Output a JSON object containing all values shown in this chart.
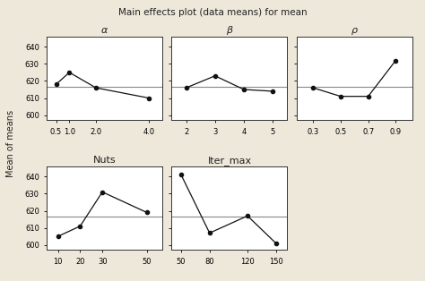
{
  "title": "Main effects plot (data means) for mean",
  "ylabel": "Mean of means",
  "background_color": "#ede8da",
  "panel_bg": "#ffffff",
  "line_color": "#111111",
  "ref_line_color": "#888888",
  "ref_line_value": 616.5,
  "subplots": [
    {
      "label": "α",
      "x": [
        0.5,
        1.0,
        2.0,
        4.0
      ],
      "y": [
        618,
        625,
        616,
        610
      ],
      "xlim": [
        0.15,
        4.5
      ],
      "xticks": [
        0.5,
        1.0,
        2.0,
        4.0
      ],
      "xticklabels": [
        "0.5",
        "1.0",
        "2.0",
        "4.0"
      ]
    },
    {
      "label": "β",
      "x": [
        2,
        3,
        4,
        5
      ],
      "y": [
        616,
        623,
        615,
        614
      ],
      "xlim": [
        1.5,
        5.5
      ],
      "xticks": [
        2,
        3,
        4,
        5
      ],
      "xticklabels": [
        "2",
        "3",
        "4",
        "5"
      ]
    },
    {
      "label": "ρ",
      "x": [
        0.3,
        0.5,
        0.7,
        0.9
      ],
      "y": [
        616,
        611,
        611,
        632
      ],
      "xlim": [
        0.18,
        1.02
      ],
      "xticks": [
        0.3,
        0.5,
        0.7,
        0.9
      ],
      "xticklabels": [
        "0.3",
        "0.5",
        "0.7",
        "0.9"
      ]
    },
    {
      "label": "Nuts",
      "x": [
        10,
        20,
        30,
        50
      ],
      "y": [
        605,
        611,
        631,
        619
      ],
      "xlim": [
        5,
        57
      ],
      "xticks": [
        10,
        20,
        30,
        50
      ],
      "xticklabels": [
        "10",
        "20",
        "30",
        "50"
      ]
    },
    {
      "label": "Iter_max",
      "x": [
        50,
        80,
        120,
        150
      ],
      "y": [
        641,
        607,
        617,
        601
      ],
      "xlim": [
        40,
        162
      ],
      "xticks": [
        50,
        80,
        120,
        150
      ],
      "xticklabels": [
        "50",
        "80",
        "120",
        "150"
      ]
    }
  ],
  "ylim": [
    597,
    646
  ],
  "yticks": [
    600,
    610,
    620,
    630,
    640
  ]
}
